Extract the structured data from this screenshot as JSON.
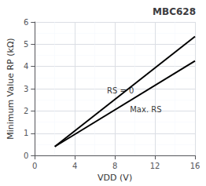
{
  "chart_data": {
    "type": "line",
    "title": "MBC628",
    "xlabel": "VDD (V)",
    "ylabel": "Minimum Value RP (kΩ)",
    "x": [
      2.0,
      16.0
    ],
    "series": [
      {
        "color": "#000000",
        "values": [
          0.4,
          5.35
        ]
      },
      {
        "color": "#000000",
        "values": [
          0.4,
          4.25
        ]
      }
    ],
    "annotations": [
      {
        "text": "RS = 0",
        "x": 7.2,
        "y": 2.75,
        "color": "#000000"
      },
      {
        "text": "Max. RS",
        "x": 9.5,
        "y": 2.25,
        "color": "#000000"
      }
    ],
    "xlim": [
      0,
      16
    ],
    "xticks": [
      0,
      4,
      8,
      12,
      16
    ],
    "ylim": [
      0,
      6
    ],
    "yticks": [
      0,
      1,
      2,
      3,
      4,
      5,
      6
    ],
    "grid": true
  }
}
